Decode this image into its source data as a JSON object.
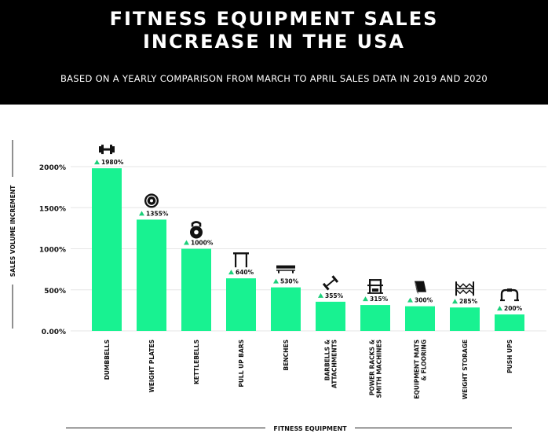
{
  "header": {
    "title_line1": "FITNESS EQUIPMENT SALES",
    "title_line2": "INCREASE IN THE USA",
    "subtitle": "BASED ON A YEARLY COMPARISON FROM MARCH TO APRIL SALES DATA IN 2019 AND 2020"
  },
  "chart_data": {
    "type": "bar",
    "title": "FITNESS EQUIPMENT SALES INCREASE IN THE USA",
    "subtitle": "BASED ON A YEARLY COMPARISON FROM MARCH TO APRIL SALES DATA IN 2019 AND 2020",
    "xlabel": "FITNESS EQUIPMENT",
    "ylabel": "SALES VOLUME INCREMENT",
    "ylim": [
      0,
      2000
    ],
    "yticks": [
      0,
      500,
      1000,
      1500,
      2000
    ],
    "ytick_labels": [
      "0.00%",
      "500%",
      "1000%",
      "1500%",
      "2000%"
    ],
    "grid": true,
    "categories": [
      "DUMBBELLS",
      "WEIGHT PLATES",
      "KETTLEBELLS",
      "PULL UP BARS",
      "BENCHES",
      "BARBELLS & ATTACHMENTS",
      "POWER RACKS & SMITH MACHINES",
      "EQUIPMENT MATS & FLOORING",
      "WEIGHT STORAGE",
      "PUSH UPS"
    ],
    "category_lines": [
      [
        "DUMBBELLS"
      ],
      [
        "WEIGHT PLATES"
      ],
      [
        "KETTLEBELLS"
      ],
      [
        "PULL UP BARS"
      ],
      [
        "BENCHES"
      ],
      [
        "BARBELLS &",
        "ATTACHMENTS"
      ],
      [
        "POWER RACKS &",
        "SMITH MACHINES"
      ],
      [
        "EQUIPMENT MATS",
        "& FLOORING"
      ],
      [
        "WEIGHT STORAGE"
      ],
      [
        "PUSH UPS"
      ]
    ],
    "values": [
      1980,
      1355,
      1000,
      640,
      530,
      355,
      315,
      300,
      285,
      200
    ],
    "value_labels": [
      "1980%",
      "1355%",
      "1000%",
      "640%",
      "530%",
      "355%",
      "315%",
      "300%",
      "285%",
      "200%"
    ],
    "icons": [
      "dumbbell-icon",
      "weight-plate-icon",
      "kettlebell-icon",
      "pull-up-bar-icon",
      "bench-icon",
      "barbell-icon",
      "power-rack-icon",
      "floor-mat-icon",
      "weight-storage-icon",
      "push-up-bar-icon"
    ],
    "colors": {
      "bar": "#18f291",
      "arrow": "#1ccf7a",
      "grid": "#e6e6e6",
      "text": "#111111"
    }
  }
}
